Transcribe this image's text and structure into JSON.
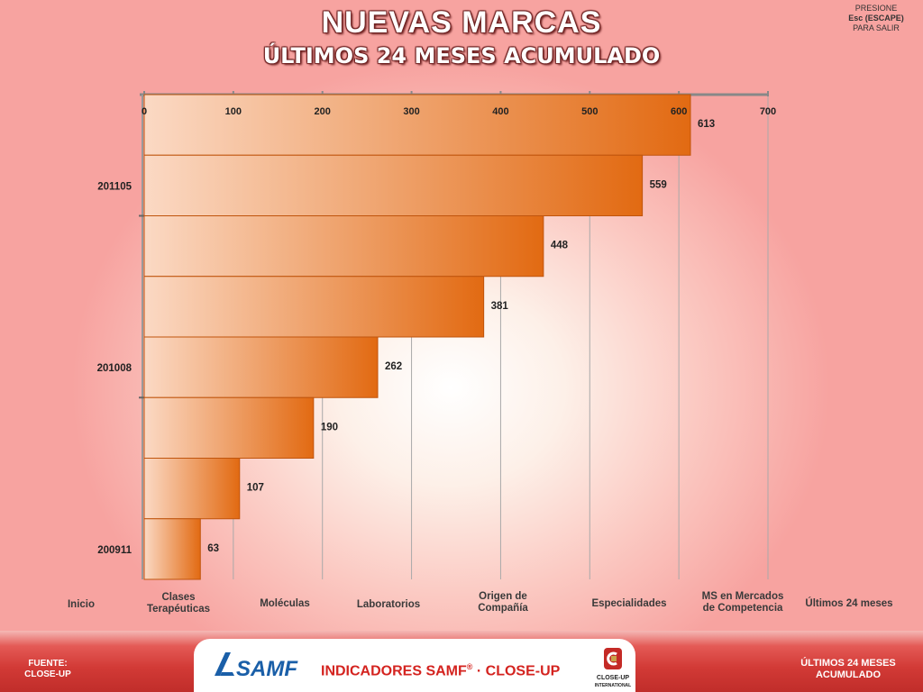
{
  "title": "NUEVAS MARCAS",
  "subtitle": "ÚLTIMOS 24 MESES ACUMULADO",
  "escape_hint": {
    "line1": "PRESIONE",
    "line2": "Esc (ESCAPE)",
    "line3": "PARA SALIR"
  },
  "colors": {
    "bar_light": "#fbd9c4",
    "bar_dark": "#e26a12",
    "bar_stroke": "#c0540c",
    "accent_red": "#d4231f"
  },
  "chart_data": {
    "type": "bar",
    "orientation": "horizontal",
    "title": "",
    "xlim": [
      0,
      700
    ],
    "x_ticks": [
      "0",
      "100",
      "200",
      "300",
      "400",
      "500",
      "600",
      "700"
    ],
    "x_axis_position": "top",
    "y_tick_labels": [
      "201105",
      "201008",
      "200911"
    ],
    "values": [
      613,
      559,
      448,
      381,
      262,
      190,
      107,
      63
    ],
    "data_labels": [
      "613",
      "559",
      "448",
      "381",
      "262",
      "190",
      "107",
      "63"
    ],
    "grid": true
  },
  "nav": {
    "items": [
      {
        "label1": "Inicio",
        "label2": ""
      },
      {
        "label1": "Clases",
        "label2": "Terapéuticas"
      },
      {
        "label1": "Moléculas",
        "label2": ""
      },
      {
        "label1": "Laboratorios",
        "label2": ""
      },
      {
        "label1": "Origen de",
        "label2": "Compañía"
      },
      {
        "label1": "Especialidades",
        "label2": ""
      },
      {
        "label1": "MS en Mercados",
        "label2": "de Competencia"
      },
      {
        "label1": "Últimos 24 meses",
        "label2": ""
      }
    ]
  },
  "footer": {
    "fuente1": "FUENTE:",
    "fuente2": "CLOSE-UP",
    "center_text": "INDICADORES SAMF",
    "registered": "®",
    "center_text2": " · CLOSE-UP",
    "right1": "ÚLTIMOS 24 MESES",
    "right2": "ACUMULADO",
    "samf_logo_text": "SAMF",
    "closeup_logo1": "CLOSE-UP",
    "closeup_logo2": "INTERNATIONAL"
  }
}
